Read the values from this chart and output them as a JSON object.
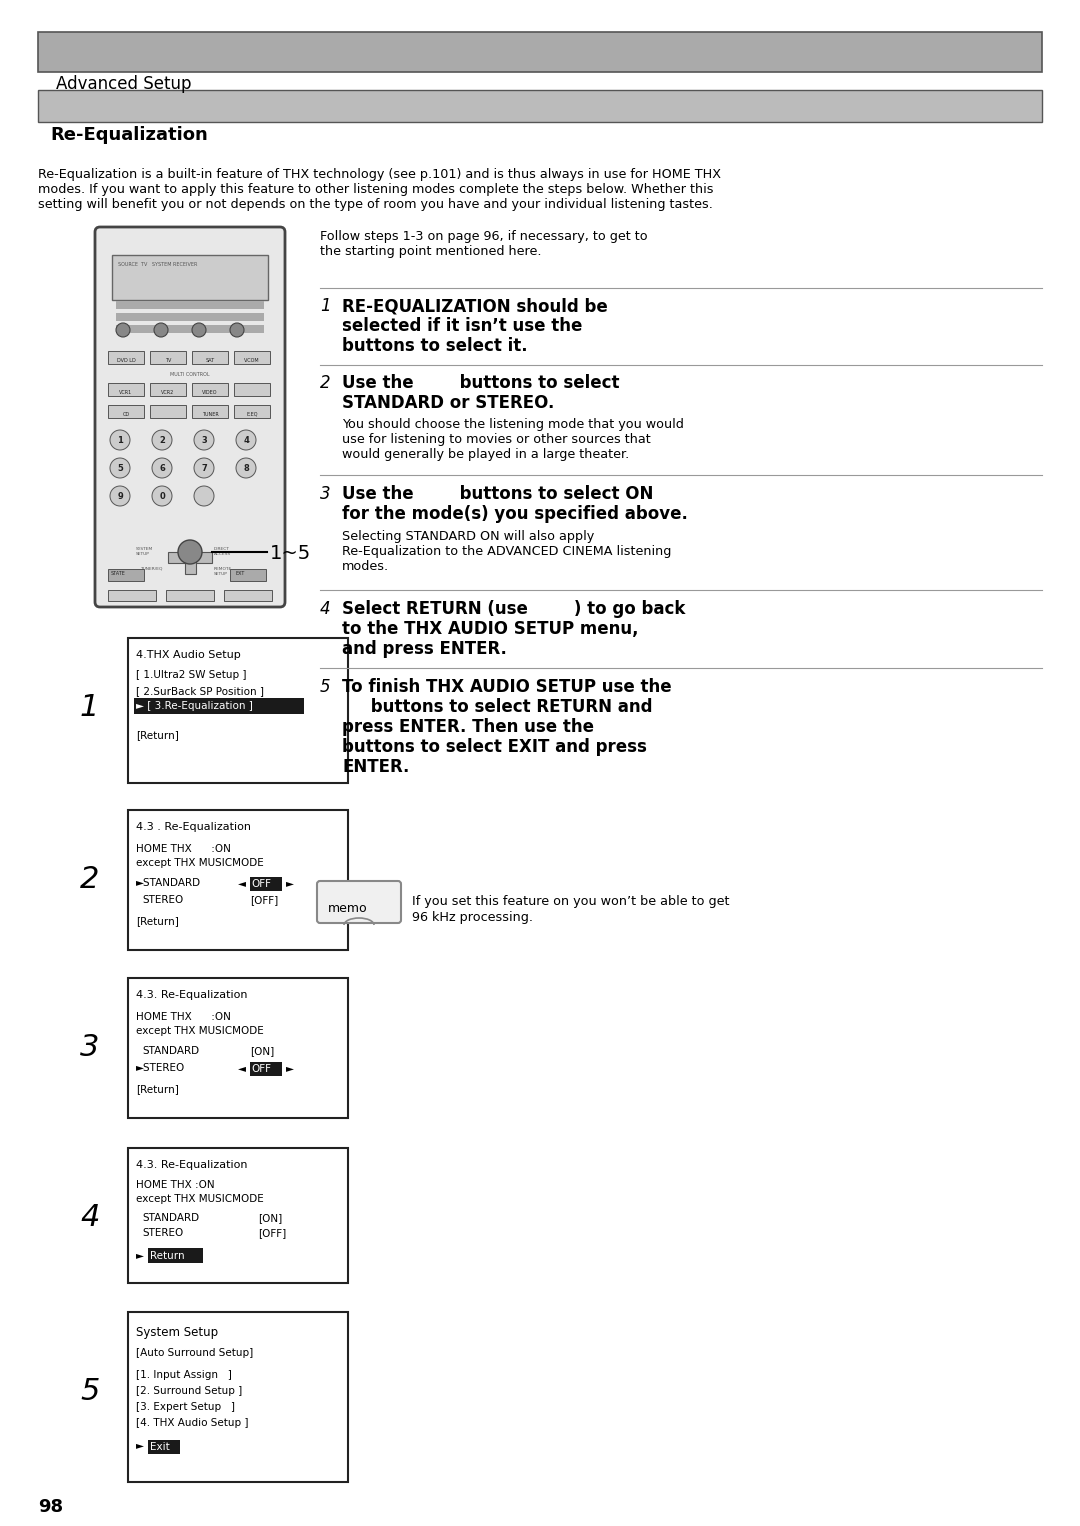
{
  "page_bg": "#ffffff",
  "header_bg": "#aaaaaa",
  "subheader_bg": "#bbbbbb",
  "header_text": "Advanced Setup",
  "subheader_text": "Re-Equalization",
  "intro_text": "Re-Equalization is a built-in feature of THX technology (see p.101) and is thus always in use for HOME THX\nmodes. If you want to apply this feature to other listening modes complete the steps below. Whether this\nsetting will benefit you or not depends on the type of room you have and your individual listening tastes.",
  "follow_steps_text": "Follow steps 1-3 on page 96, if necessary, to get to\nthe starting point mentioned here.",
  "step1_num": "1",
  "step1_main_line1": "RE-EQUALIZATION should be",
  "step1_main_line2": "selected if it isn’t use the",
  "step1_main_line3": "buttons to select it.",
  "step2_num": "2",
  "step2_main_line1": "Use the        buttons to select",
  "step2_main_line2": "STANDARD or STEREO.",
  "step2_sub": "You should choose the listening mode that you would\nuse for listening to movies or other sources that\nwould generally be played in a large theater.",
  "step3_num": "3",
  "step3_main_line1": "Use the        buttons to select ON",
  "step3_main_line2": "for the mode(s) you specified above.",
  "step3_sub": "Selecting STANDARD ON will also apply\nRe-Equalization to the ADVANCED CINEMA listening\nmodes.",
  "step4_num": "4",
  "step4_main_line1": "Select RETURN (use        ) to go back",
  "step4_main_line2": "to the THX AUDIO SETUP menu,",
  "step4_main_line3": "and press ENTER.",
  "step5_num": "5",
  "step5_main_line1": "To finish THX AUDIO SETUP use the",
  "step5_main_line2": "     buttons to select RETURN and",
  "step5_main_line3": "press ENTER. Then use the",
  "step5_main_line4": "buttons to select EXIT and press",
  "step5_main_line5": "ENTER.",
  "memo_text_line1": "If you set this feature on you won’t be able to get",
  "memo_text_line2": "96 kHz processing.",
  "page_num": "98",
  "label_1_5": "1~5",
  "highlight_bg": "#1a1a1a",
  "highlight_text": "#ffffff",
  "box_border": "#222222",
  "box_bg": "#ffffff"
}
